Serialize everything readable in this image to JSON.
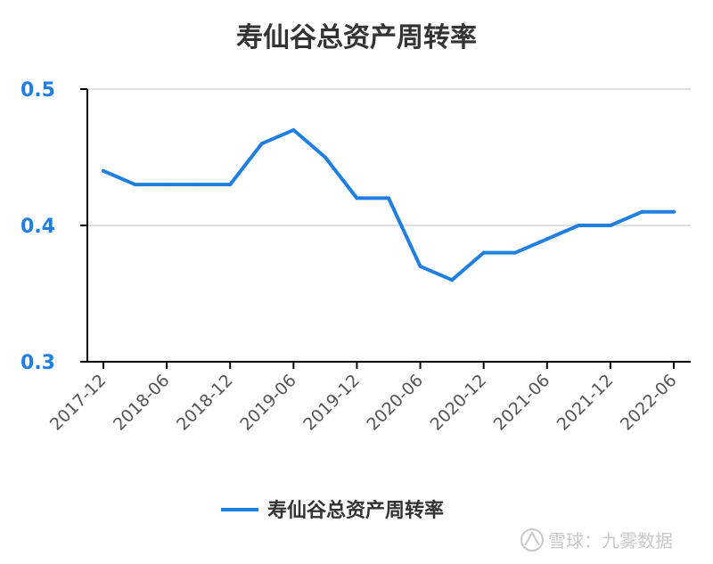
{
  "chart_data": {
    "type": "line",
    "title": "寿仙谷总资产周转率",
    "categories": [
      "2017-12",
      "2018-03",
      "2018-06",
      "2018-09",
      "2018-12",
      "2019-03",
      "2019-06",
      "2019-09",
      "2019-12",
      "2020-03",
      "2020-06",
      "2020-09",
      "2020-12",
      "2021-03",
      "2021-06",
      "2021-09",
      "2021-12",
      "2022-03",
      "2022-06"
    ],
    "x_tick_labels": [
      "2017-12",
      "2018-06",
      "2018-12",
      "2019-06",
      "2019-12",
      "2020-06",
      "2020-12",
      "2021-06",
      "2021-12",
      "2022-06"
    ],
    "series": [
      {
        "name": "寿仙谷总资产周转率",
        "values": [
          0.44,
          0.43,
          0.43,
          0.43,
          0.43,
          0.46,
          0.47,
          0.45,
          0.42,
          0.42,
          0.37,
          0.36,
          0.38,
          0.38,
          0.39,
          0.4,
          0.4,
          0.41,
          0.41
        ]
      }
    ],
    "y_ticks": [
      "0.3",
      "0.4",
      "0.5"
    ],
    "ylim": [
      0.3,
      0.5
    ],
    "grid": true,
    "legend": "bottom",
    "colors": {
      "series": "#1f7fe0",
      "y_tick": "#1f7fe0",
      "axis": "#000000",
      "grid": "#e0e0e0"
    }
  },
  "watermark": "雪球：九雾数据"
}
